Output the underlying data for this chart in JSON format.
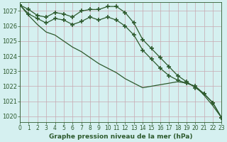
{
  "xlabel": "Graphe pression niveau de la mer (hPa)",
  "bg_color": "#d5f0f0",
  "grid_color": "#c8a8b0",
  "line_color": "#2d5a2d",
  "marker": "+",
  "marker_size": 5,
  "marker_lw": 1.2,
  "xlim": [
    0,
    23
  ],
  "ylim": [
    1019.6,
    1027.6
  ],
  "yticks": [
    1020,
    1021,
    1022,
    1023,
    1024,
    1025,
    1026,
    1027
  ],
  "xticks": [
    0,
    1,
    2,
    3,
    4,
    5,
    6,
    7,
    8,
    9,
    10,
    11,
    12,
    13,
    14,
    15,
    16,
    17,
    18,
    19,
    20,
    21,
    22,
    23
  ],
  "series1": [
    1027.4,
    1027.1,
    1026.7,
    1026.6,
    1026.9,
    1026.8,
    1026.6,
    1027.0,
    1027.1,
    1027.1,
    1027.3,
    1027.3,
    1026.9,
    1026.2,
    1025.1,
    1024.5,
    1023.9,
    1023.3,
    1022.7,
    1022.3,
    1021.9,
    1021.5,
    1020.9,
    1019.9
  ],
  "series2": [
    1027.4,
    1026.8,
    1026.5,
    1026.2,
    1026.5,
    1026.4,
    1026.1,
    1026.3,
    1026.6,
    1026.4,
    1026.6,
    1026.4,
    1026.0,
    1025.4,
    1024.4,
    1023.8,
    1023.2,
    1022.7,
    1022.4,
    1022.2,
    1022.0,
    1021.5,
    1020.9,
    1019.9
  ],
  "series3": [
    1027.4,
    1026.7,
    1026.1,
    1025.6,
    1025.4,
    1025.0,
    1024.6,
    1024.3,
    1023.9,
    1023.5,
    1023.2,
    1022.9,
    1022.5,
    1022.2,
    1021.9,
    1022.0,
    1022.1,
    1022.2,
    1022.3,
    1022.2,
    1022.0,
    1021.4,
    1020.7,
    1019.9
  ]
}
